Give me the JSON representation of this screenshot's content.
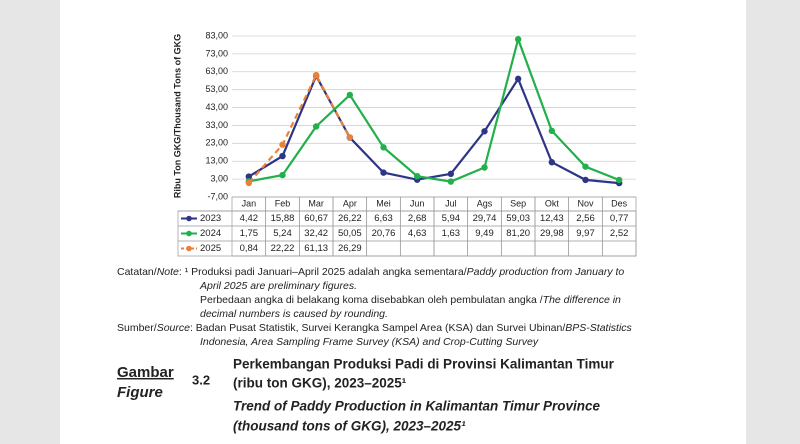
{
  "chart_data": {
    "type": "line",
    "y_label": "Ribu Ton GKG/Thousand Tons of GKG",
    "categories": [
      "Jan",
      "Feb",
      "Mar",
      "Apr",
      "Mei",
      "Jun",
      "Jul",
      "Ags",
      "Sep",
      "Okt",
      "Nov",
      "Des"
    ],
    "ylim": [
      -7,
      83
    ],
    "yticks": [
      {
        "value": -7,
        "label": "-7,00"
      },
      {
        "value": 3,
        "label": "3,00"
      },
      {
        "value": 13,
        "label": "13,00"
      },
      {
        "value": 23,
        "label": "23,00"
      },
      {
        "value": 33,
        "label": "33,00"
      },
      {
        "value": 43,
        "label": "43,00"
      },
      {
        "value": 53,
        "label": "53,00"
      },
      {
        "value": 63,
        "label": "63,00"
      },
      {
        "value": 73,
        "label": "73,00"
      },
      {
        "value": 83,
        "label": "83,00"
      }
    ],
    "grid": true,
    "series": [
      {
        "name": "2023",
        "color": "#2e3586",
        "line_style": "solid",
        "values": [
          4.42,
          15.88,
          60.67,
          26.22,
          6.63,
          2.68,
          5.94,
          29.74,
          59.03,
          12.43,
          2.56,
          0.77
        ],
        "value_labels": [
          "4,42",
          "15,88",
          "60,67",
          "26,22",
          "6,63",
          "2,68",
          "5,94",
          "29,74",
          "59,03",
          "12,43",
          "2,56",
          "0,77"
        ]
      },
      {
        "name": "2024",
        "color": "#21b04b",
        "line_style": "solid",
        "values": [
          1.75,
          5.24,
          32.42,
          50.05,
          20.76,
          4.63,
          1.63,
          9.49,
          81.2,
          29.98,
          9.97,
          2.52
        ],
        "value_labels": [
          "1,75",
          "5,24",
          "32,42",
          "50,05",
          "20,76",
          "4,63",
          "1,63",
          "9,49",
          "81,20",
          "29,98",
          "9,97",
          "2,52"
        ]
      },
      {
        "name": "2025",
        "color": "#e8823a",
        "line_style": "dashed",
        "values": [
          0.84,
          22.22,
          61.13,
          26.29,
          null,
          null,
          null,
          null,
          null,
          null,
          null,
          null
        ],
        "value_labels": [
          "0,84",
          "22,22",
          "61,13",
          "26,29",
          null,
          null,
          null,
          null,
          null,
          null,
          null,
          null
        ]
      }
    ]
  },
  "notes": [
    {
      "x": "left",
      "segments": [
        {
          "text": "Catatan/"
        },
        {
          "text": "Note",
          "italic": true
        },
        {
          "text": ": ¹ Produksi padi Januari–April 2025 adalah angka sementara/"
        },
        {
          "text": "Paddy production from January to",
          "italic": true
        }
      ]
    },
    {
      "x": "indent",
      "segments": [
        {
          "text": "April 2025 are preliminary figures.",
          "italic": true
        }
      ]
    },
    {
      "x": "indent",
      "segments": [
        {
          "text": "Perbedaan angka di belakang koma disebabkan oleh pembulatan angka /"
        },
        {
          "text": "The difference in",
          "italic": true
        }
      ]
    },
    {
      "x": "indent",
      "segments": [
        {
          "text": "decimal numbers is caused by rounding.",
          "italic": true
        }
      ]
    },
    {
      "x": "left",
      "segments": [
        {
          "text": "Sumber/"
        },
        {
          "text": "Source",
          "italic": true
        },
        {
          "text": ": Badan Pusat Statistik, Survei Kerangka Sampel Area (KSA) dan Survei Ubinan/"
        },
        {
          "text": "BPS-Statistics",
          "italic": true
        }
      ]
    },
    {
      "x": "indent",
      "segments": [
        {
          "text": "Indonesia, Area Sampling Frame Survey (KSA) and Crop-Cutting Survey",
          "italic": true
        }
      ]
    }
  ],
  "caption": {
    "label": "Gambar",
    "label_en": "Figure",
    "number": "3.2",
    "title": "Perkembangan Produksi Padi di Provinsi Kalimantan Timur",
    "title_2": "(ribu ton GKG), 2023–2025¹",
    "title_en": "Trend of Paddy Production in Kalimantan Timur Province",
    "title_en_2": "(thousand tons of GKG), 2023–2025¹"
  }
}
